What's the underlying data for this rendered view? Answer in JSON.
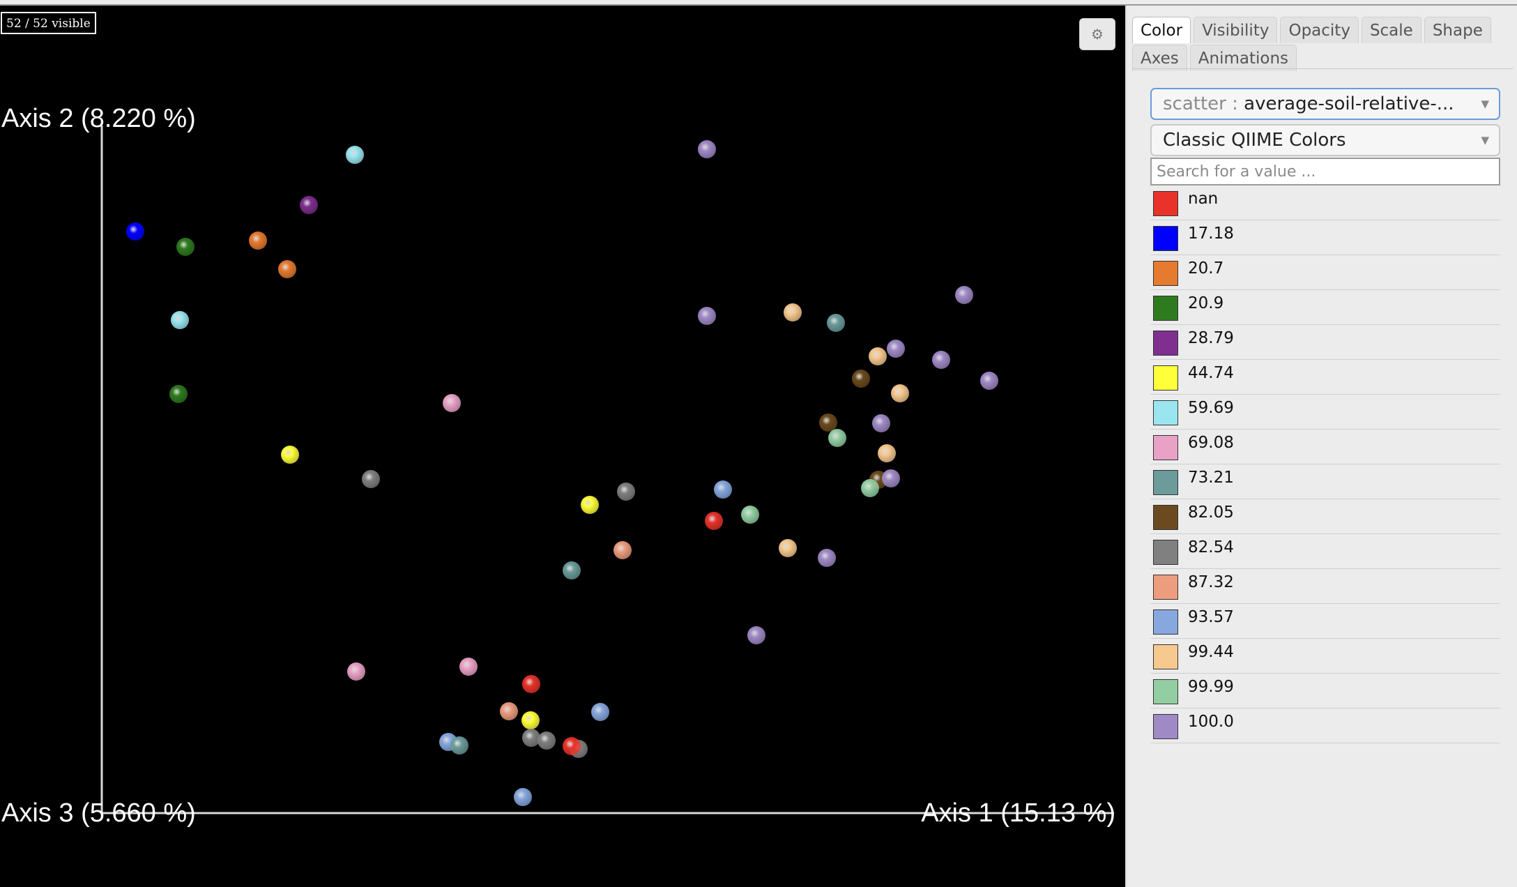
{
  "plot": {
    "visible_count": "52 / 52 visible",
    "axes": {
      "axis1": "Axis 1 (15.13 %)",
      "axis2": "Axis 2 (8.220 %)",
      "axis3": "Axis 3 (5.660 %)"
    },
    "settings_icon": "gear-icon"
  },
  "panel": {
    "tabs_row1": [
      "Color",
      "Visibility",
      "Opacity",
      "Scale",
      "Shape"
    ],
    "tabs_row2": [
      "Axes",
      "Animations"
    ],
    "active_tab": "Color",
    "category_select": {
      "prefix": "scatter : ",
      "value": "average-soil-relative-..."
    },
    "colormap_select": "Classic QIIME Colors",
    "search_placeholder": "Search for a value ...",
    "legend": [
      {
        "label": "nan",
        "color": "#e8322a"
      },
      {
        "label": "17.18",
        "color": "#0000ff"
      },
      {
        "label": "20.7",
        "color": "#e67b30"
      },
      {
        "label": "20.9",
        "color": "#2e7a1e"
      },
      {
        "label": "28.79",
        "color": "#7e2f8f"
      },
      {
        "label": "44.74",
        "color": "#ffff3a"
      },
      {
        "label": "59.69",
        "color": "#9ae6f0"
      },
      {
        "label": "69.08",
        "color": "#e9a2c6"
      },
      {
        "label": "73.21",
        "color": "#6b9b9a"
      },
      {
        "label": "82.05",
        "color": "#6a4a1e"
      },
      {
        "label": "82.54",
        "color": "#808080"
      },
      {
        "label": "87.32",
        "color": "#ec9d7e"
      },
      {
        "label": "93.57",
        "color": "#86a8de"
      },
      {
        "label": "99.44",
        "color": "#f6c98f"
      },
      {
        "label": "99.99",
        "color": "#93cea3"
      },
      {
        "label": "100.0",
        "color": "#a08ac6"
      }
    ]
  }
}
